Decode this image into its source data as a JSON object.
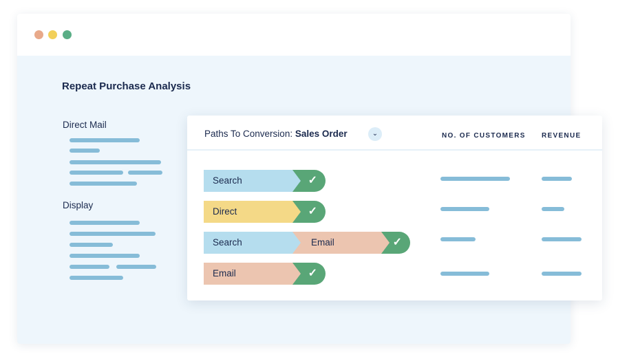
{
  "window": {
    "dots": [
      "#e8a98a",
      "#f2d05a",
      "#5aae86"
    ]
  },
  "title": "Repeat Purchase Analysis",
  "sidebar": {
    "sections": [
      {
        "label": "Direct Mail"
      },
      {
        "label": "Display"
      }
    ]
  },
  "card": {
    "paths_label": "Paths To Conversion:",
    "paths_value": "Sales Order",
    "dropdown_icon": "chevron-down-icon",
    "columns": [
      "NO. OF CUSTOMERS",
      "REVENUE"
    ],
    "rows": [
      {
        "steps": [
          "Search"
        ],
        "converted": true
      },
      {
        "steps": [
          "Direct"
        ],
        "converted": true
      },
      {
        "steps": [
          "Search",
          "Email"
        ],
        "converted": true
      },
      {
        "steps": [
          "Email"
        ],
        "converted": true
      }
    ]
  },
  "colors": {
    "Search": "#b5ddee",
    "Direct": "#f4d987",
    "Email": "#ecc5b0",
    "converted": "#59a677",
    "placeholder": "#86bcd8"
  }
}
